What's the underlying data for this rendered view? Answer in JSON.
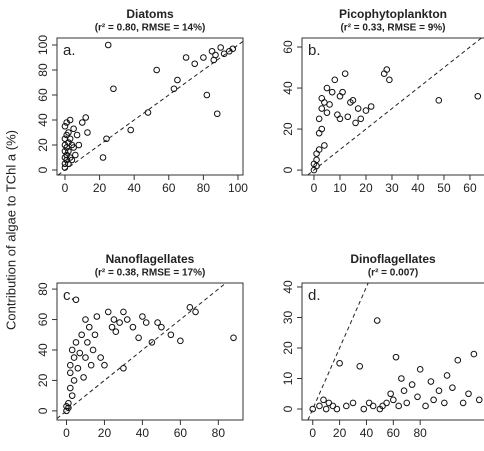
{
  "y_label": "Contribution of algae to TChl a (%)",
  "chart_data": [
    {
      "type": "scatter",
      "title": "Diatoms",
      "subtitle": "(r² = 0.80, RMSE = 14%)",
      "panel_label": "a.",
      "x": [
        0,
        0,
        0,
        0,
        0,
        0,
        0,
        1,
        1,
        1,
        1,
        1,
        2,
        2,
        2,
        2,
        3,
        3,
        3,
        4,
        4,
        5,
        5,
        6,
        7,
        8,
        10,
        12,
        13,
        22,
        24,
        25,
        28,
        38,
        48,
        53,
        63,
        65,
        70,
        75,
        80,
        82,
        85,
        86,
        87,
        88,
        90,
        92,
        95,
        97
      ],
      "values": [
        2,
        5,
        10,
        15,
        20,
        25,
        35,
        8,
        12,
        18,
        28,
        38,
        5,
        15,
        22,
        30,
        10,
        25,
        40,
        8,
        20,
        18,
        33,
        12,
        28,
        20,
        38,
        42,
        30,
        10,
        25,
        100,
        65,
        32,
        46,
        80,
        65,
        72,
        90,
        85,
        90,
        60,
        95,
        88,
        92,
        45,
        98,
        93,
        95,
        97
      ],
      "xlim": [
        -4.6,
        102.9
      ],
      "ylim": [
        -4,
        105.6
      ],
      "xticks": [
        0,
        20,
        40,
        60,
        80,
        100
      ],
      "yticks": [
        0,
        20,
        40,
        60,
        80,
        100
      ]
    },
    {
      "type": "scatter",
      "title": "Picophytoplankton",
      "subtitle": "(r² = 0.33, RMSE = 9%)",
      "panel_label": "b.",
      "x": [
        0,
        0,
        1,
        1,
        1,
        2,
        2,
        2,
        3,
        3,
        3,
        4,
        4,
        5,
        5,
        6,
        7,
        8,
        9,
        10,
        10,
        11,
        12,
        13,
        14,
        15,
        16,
        17,
        18,
        20,
        22,
        27,
        28,
        29,
        48,
        63
      ],
      "values": [
        0,
        3,
        5,
        8,
        2,
        10,
        18,
        25,
        20,
        30,
        35,
        12,
        33,
        28,
        40,
        32,
        38,
        44,
        27,
        36,
        25,
        38,
        47,
        26,
        33,
        34,
        23,
        30,
        25,
        29,
        31,
        47,
        49,
        44,
        34,
        36
      ],
      "xlim": [
        -4.6,
        67.7
      ],
      "ylim": [
        -2.4,
        64.4
      ],
      "xticks": [
        0,
        10,
        20,
        30,
        40,
        50,
        60
      ],
      "yticks": [
        0,
        20,
        40,
        60
      ]
    },
    {
      "type": "scatter",
      "title": "Nanoflagellates",
      "subtitle": "(r² = 0.38, RMSE = 17%)",
      "panel_label": "c.",
      "x": [
        0,
        0,
        1,
        1,
        2,
        2,
        2,
        3,
        3,
        4,
        4,
        5,
        5,
        6,
        7,
        8,
        9,
        10,
        10,
        11,
        12,
        13,
        14,
        15,
        16,
        18,
        20,
        22,
        24,
        25,
        26,
        28,
        30,
        30,
        32,
        35,
        38,
        40,
        42,
        45,
        48,
        50,
        55,
        60,
        65,
        68,
        88
      ],
      "values": [
        0,
        3,
        2,
        5,
        15,
        25,
        30,
        10,
        40,
        35,
        20,
        45,
        73,
        28,
        38,
        50,
        22,
        60,
        35,
        45,
        55,
        30,
        40,
        50,
        62,
        35,
        30,
        65,
        55,
        60,
        52,
        58,
        65,
        28,
        60,
        55,
        48,
        62,
        58,
        45,
        58,
        55,
        50,
        46,
        68,
        65,
        48
      ],
      "xlim": [
        -5,
        93
      ],
      "ylim": [
        -6,
        84
      ],
      "xticks": [
        0,
        20,
        40,
        60,
        80
      ],
      "yticks": [
        0,
        20,
        40,
        60,
        80
      ]
    },
    {
      "type": "scatter",
      "title": "Dinoflagellates",
      "subtitle": "(r² = 0.007)",
      "panel_label": "d.",
      "x": [
        0,
        5,
        8,
        10,
        12,
        15,
        18,
        20,
        25,
        30,
        35,
        38,
        42,
        45,
        48,
        50,
        52,
        55,
        58,
        60,
        62,
        64,
        66,
        68,
        70,
        74,
        78,
        80,
        84,
        88,
        90,
        94,
        98,
        100,
        104,
        108,
        112,
        116,
        120,
        124
      ],
      "values": [
        0,
        1,
        3,
        0,
        2,
        1,
        0,
        15,
        1,
        2,
        14,
        0,
        2,
        1,
        29,
        0,
        1,
        2,
        5,
        3,
        17,
        1,
        10,
        6,
        2,
        8,
        4,
        13,
        1,
        9,
        3,
        6,
        2,
        11,
        7,
        16,
        2,
        5,
        18,
        3
      ],
      "xlim": [
        -8,
        132
      ],
      "ylim": [
        -3.6,
        41.3
      ],
      "xticks": [
        0,
        20,
        40,
        60,
        80
      ],
      "yticks": [
        0,
        10,
        20,
        30,
        40
      ]
    }
  ]
}
